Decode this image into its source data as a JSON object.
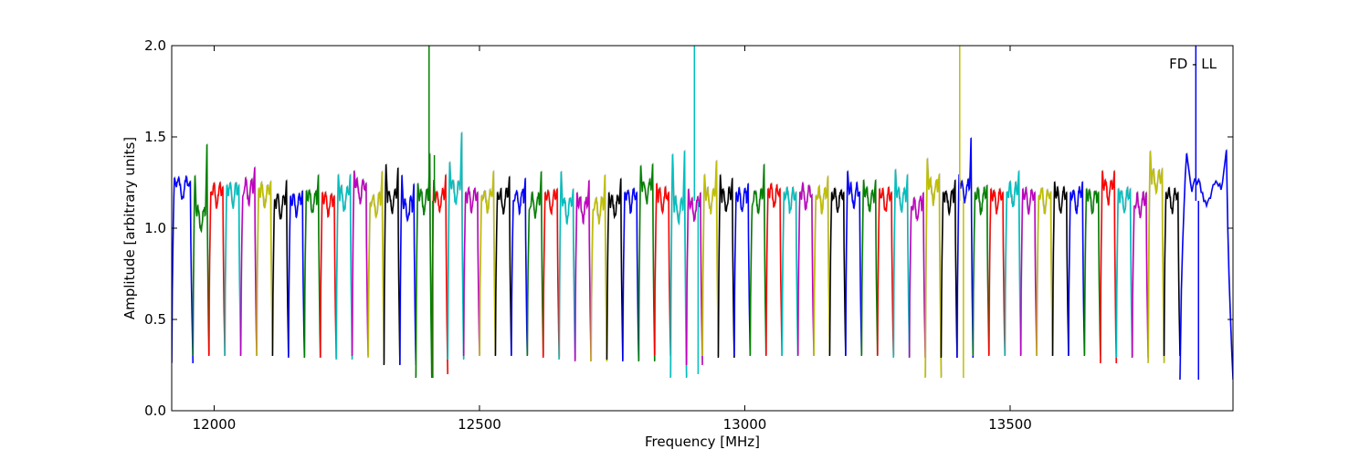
{
  "chart_data": {
    "type": "line",
    "title": "",
    "annotation": "FD - LL",
    "legend": "none",
    "grid": false,
    "xlabel": "Frequency [MHz]",
    "ylabel": "Amplitude [arbitrary units]",
    "xlim": [
      11920,
      13920
    ],
    "ylim": [
      0.0,
      2.0
    ],
    "xticks": [
      12000,
      12500,
      13000,
      13500
    ],
    "xtick_labels": [
      "12000",
      "12500",
      "13000",
      "13500"
    ],
    "yticks": [
      0.0,
      0.5,
      1.0,
      1.5,
      2.0
    ],
    "ytick_labels": [
      "0.0",
      "0.5",
      "1.0",
      "1.5",
      "2.0"
    ],
    "channel_width_mhz": 31.25,
    "colors": [
      "#0000ff",
      "#008000",
      "#ff0000",
      "#00bfbf",
      "#bf00bf",
      "#bfbf00",
      "#000000"
    ],
    "gray_overlay_color": "#aaaaaa",
    "channels": [
      {
        "start": 11920,
        "end": 11960,
        "color": "#0000ff",
        "plateau": 1.22,
        "left_peak": 1.28,
        "right_peak": 1.26,
        "min": 0.26
      },
      {
        "start": 11960,
        "end": 11990,
        "color": "#008000",
        "plateau": 1.05,
        "left_peak": 1.3,
        "right_peak": 1.48,
        "min": 0.3
      },
      {
        "start": 11990,
        "end": 12020,
        "color": "#ff0000",
        "plateau": 1.18,
        "left_peak": 1.2,
        "right_peak": 1.23,
        "min": 0.3
      },
      {
        "start": 12020,
        "end": 12050,
        "color": "#00bfbf",
        "plateau": 1.18,
        "left_peak": 1.24,
        "right_peak": 1.24,
        "min": 0.3
      },
      {
        "start": 12050,
        "end": 12080,
        "color": "#bf00bf",
        "plateau": 1.2,
        "left_peak": 1.17,
        "right_peak": 1.34,
        "min": 0.3
      },
      {
        "start": 12080,
        "end": 12110,
        "color": "#bfbf00",
        "plateau": 1.18,
        "left_peak": 1.22,
        "right_peak": 1.26,
        "min": 0.3
      },
      {
        "start": 12110,
        "end": 12140,
        "color": "#000000",
        "plateau": 1.12,
        "left_peak": 1.16,
        "right_peak": 1.27,
        "min": 0.3
      },
      {
        "start": 12140,
        "end": 12170,
        "color": "#0000ff",
        "plateau": 1.12,
        "left_peak": 1.18,
        "right_peak": 1.21,
        "min": 0.29
      },
      {
        "start": 12170,
        "end": 12200,
        "color": "#008000",
        "plateau": 1.14,
        "left_peak": 1.21,
        "right_peak": 1.3,
        "min": 0.29
      },
      {
        "start": 12200,
        "end": 12230,
        "color": "#ff0000",
        "plateau": 1.13,
        "left_peak": 1.2,
        "right_peak": 1.18,
        "min": 0.29
      },
      {
        "start": 12230,
        "end": 12260,
        "color": "#00bfbf",
        "plateau": 1.16,
        "left_peak": 1.3,
        "right_peak": 1.3,
        "min": 0.28
      },
      {
        "start": 12260,
        "end": 12290,
        "color": "#bf00bf",
        "plateau": 1.2,
        "left_peak": 1.32,
        "right_peak": 1.25,
        "min": 0.3
      },
      {
        "start": 12290,
        "end": 12320,
        "color": "#bfbf00",
        "plateau": 1.12,
        "left_peak": 1.14,
        "right_peak": 1.32,
        "min": 0.29
      },
      {
        "start": 12320,
        "end": 12350,
        "color": "#000000",
        "plateau": 1.15,
        "left_peak": 1.36,
        "right_peak": 1.34,
        "min": 0.25
      },
      {
        "start": 12350,
        "end": 12380,
        "color": "#0000ff",
        "plateau": 1.1,
        "left_peak": 1.3,
        "right_peak": 1.25,
        "min": 0.25
      },
      {
        "start": 12380,
        "end": 12410,
        "color": "#008000",
        "plateau": 1.15,
        "left_peak": 1.25,
        "right_peak": 1.42,
        "min": 0.18
      },
      {
        "start": 12410,
        "end": 12440,
        "color": "#ff0000",
        "plateau": 1.15,
        "left_peak": 1.27,
        "right_peak": 1.3,
        "min": 0.2
      },
      {
        "start": 12440,
        "end": 12470,
        "color": "#00bfbf",
        "plateau": 1.2,
        "left_peak": 1.37,
        "right_peak": 1.54,
        "min": 0.28
      },
      {
        "start": 12470,
        "end": 12500,
        "color": "#bf00bf",
        "plateau": 1.15,
        "left_peak": 1.2,
        "right_peak": 1.2,
        "min": 0.3
      },
      {
        "start": 12500,
        "end": 12530,
        "color": "#bfbf00",
        "plateau": 1.15,
        "left_peak": 1.18,
        "right_peak": 1.32,
        "min": 0.3
      },
      {
        "start": 12530,
        "end": 12560,
        "color": "#000000",
        "plateau": 1.15,
        "left_peak": 1.2,
        "right_peak": 1.29,
        "min": 0.3
      },
      {
        "start": 12560,
        "end": 12590,
        "color": "#0000ff",
        "plateau": 1.15,
        "left_peak": 1.15,
        "right_peak": 1.28,
        "min": 0.3
      },
      {
        "start": 12590,
        "end": 12620,
        "color": "#008000",
        "plateau": 1.12,
        "left_peak": 1.1,
        "right_peak": 1.32,
        "min": 0.3
      },
      {
        "start": 12620,
        "end": 12650,
        "color": "#ff0000",
        "plateau": 1.15,
        "left_peak": 1.2,
        "right_peak": 1.22,
        "min": 0.29
      },
      {
        "start": 12650,
        "end": 12680,
        "color": "#00bfbf",
        "plateau": 1.1,
        "left_peak": 1.32,
        "right_peak": 1.22,
        "min": 0.28
      },
      {
        "start": 12680,
        "end": 12710,
        "color": "#bf00bf",
        "plateau": 1.1,
        "left_peak": 1.2,
        "right_peak": 1.27,
        "min": 0.27
      },
      {
        "start": 12710,
        "end": 12740,
        "color": "#bfbf00",
        "plateau": 1.1,
        "left_peak": 1.1,
        "right_peak": 1.3,
        "min": 0.27
      },
      {
        "start": 12740,
        "end": 12770,
        "color": "#000000",
        "plateau": 1.12,
        "left_peak": 1.2,
        "right_peak": 1.28,
        "min": 0.28
      },
      {
        "start": 12770,
        "end": 12800,
        "color": "#0000ff",
        "plateau": 1.15,
        "left_peak": 1.2,
        "right_peak": 1.2,
        "min": 0.27
      },
      {
        "start": 12800,
        "end": 12830,
        "color": "#008000",
        "plateau": 1.2,
        "left_peak": 1.35,
        "right_peak": 1.36,
        "min": 0.27
      },
      {
        "start": 12830,
        "end": 12860,
        "color": "#ff0000",
        "plateau": 1.15,
        "left_peak": 1.25,
        "right_peak": 1.2,
        "min": 0.3
      },
      {
        "start": 12860,
        "end": 12890,
        "color": "#00bfbf",
        "plateau": 1.1,
        "left_peak": 1.42,
        "right_peak": 1.44,
        "min": 0.18
      },
      {
        "start": 12890,
        "end": 12920,
        "color": "#bf00bf",
        "plateau": 1.1,
        "left_peak": 1.22,
        "right_peak": 1.2,
        "min": 0.25
      },
      {
        "start": 12920,
        "end": 12950,
        "color": "#bfbf00",
        "plateau": 1.15,
        "left_peak": 1.3,
        "right_peak": 1.38,
        "min": 0.3
      },
      {
        "start": 12950,
        "end": 12980,
        "color": "#000000",
        "plateau": 1.15,
        "left_peak": 1.3,
        "right_peak": 1.28,
        "min": 0.29
      },
      {
        "start": 12980,
        "end": 13010,
        "color": "#0000ff",
        "plateau": 1.15,
        "left_peak": 1.2,
        "right_peak": 1.25,
        "min": 0.3
      },
      {
        "start": 13010,
        "end": 13040,
        "color": "#008000",
        "plateau": 1.15,
        "left_peak": 1.12,
        "right_peak": 1.36,
        "min": 0.3
      },
      {
        "start": 13040,
        "end": 13070,
        "color": "#ff0000",
        "plateau": 1.17,
        "left_peak": 1.22,
        "right_peak": 1.22,
        "min": 0.3
      },
      {
        "start": 13070,
        "end": 13100,
        "color": "#00bfbf",
        "plateau": 1.15,
        "left_peak": 1.2,
        "right_peak": 1.2,
        "min": 0.3
      },
      {
        "start": 13100,
        "end": 13130,
        "color": "#bf00bf",
        "plateau": 1.17,
        "left_peak": 1.2,
        "right_peak": 1.18,
        "min": 0.3
      },
      {
        "start": 13130,
        "end": 13160,
        "color": "#bfbf00",
        "plateau": 1.15,
        "left_peak": 1.18,
        "right_peak": 1.29,
        "min": 0.3
      },
      {
        "start": 13160,
        "end": 13190,
        "color": "#000000",
        "plateau": 1.15,
        "left_peak": 1.2,
        "right_peak": 1.2,
        "min": 0.3
      },
      {
        "start": 13190,
        "end": 13220,
        "color": "#0000ff",
        "plateau": 1.18,
        "left_peak": 1.32,
        "right_peak": 1.2,
        "min": 0.3
      },
      {
        "start": 13220,
        "end": 13250,
        "color": "#008000",
        "plateau": 1.15,
        "left_peak": 1.27,
        "right_peak": 1.27,
        "min": 0.3
      },
      {
        "start": 13250,
        "end": 13280,
        "color": "#ff0000",
        "plateau": 1.15,
        "left_peak": 1.22,
        "right_peak": 1.2,
        "min": 0.3
      },
      {
        "start": 13280,
        "end": 13310,
        "color": "#00bfbf",
        "plateau": 1.15,
        "left_peak": 1.33,
        "right_peak": 1.3,
        "min": 0.29
      },
      {
        "start": 13310,
        "end": 13340,
        "color": "#bf00bf",
        "plateau": 1.1,
        "left_peak": 1.12,
        "right_peak": 1.2,
        "min": 0.29
      },
      {
        "start": 13340,
        "end": 13370,
        "color": "#bfbf00",
        "plateau": 1.2,
        "left_peak": 1.39,
        "right_peak": 1.3,
        "min": 0.18
      },
      {
        "start": 13370,
        "end": 13400,
        "color": "#000000",
        "plateau": 1.15,
        "left_peak": 1.2,
        "right_peak": 1.27,
        "min": 0.29
      },
      {
        "start": 13400,
        "end": 13430,
        "color": "#0000ff",
        "plateau": 1.2,
        "left_peak": 1.3,
        "right_peak": 1.51,
        "min": 0.29
      },
      {
        "start": 13430,
        "end": 13460,
        "color": "#008000",
        "plateau": 1.15,
        "left_peak": 1.2,
        "right_peak": 1.24,
        "min": 0.3
      },
      {
        "start": 13460,
        "end": 13490,
        "color": "#ff0000",
        "plateau": 1.15,
        "left_peak": 1.22,
        "right_peak": 1.2,
        "min": 0.3
      },
      {
        "start": 13490,
        "end": 13520,
        "color": "#00bfbf",
        "plateau": 1.18,
        "left_peak": 1.2,
        "right_peak": 1.32,
        "min": 0.3
      },
      {
        "start": 13520,
        "end": 13550,
        "color": "#bf00bf",
        "plateau": 1.15,
        "left_peak": 1.22,
        "right_peak": 1.2,
        "min": 0.3
      },
      {
        "start": 13550,
        "end": 13580,
        "color": "#bfbf00",
        "plateau": 1.15,
        "left_peak": 1.18,
        "right_peak": 1.2,
        "min": 0.3
      },
      {
        "start": 13580,
        "end": 13610,
        "color": "#000000",
        "plateau": 1.15,
        "left_peak": 1.26,
        "right_peak": 1.2,
        "min": 0.3
      },
      {
        "start": 13610,
        "end": 13640,
        "color": "#0000ff",
        "plateau": 1.15,
        "left_peak": 1.2,
        "right_peak": 1.26,
        "min": 0.3
      },
      {
        "start": 13640,
        "end": 13670,
        "color": "#008000",
        "plateau": 1.15,
        "left_peak": 1.22,
        "right_peak": 1.2,
        "min": 0.3
      },
      {
        "start": 13670,
        "end": 13700,
        "color": "#ff0000",
        "plateau": 1.2,
        "left_peak": 1.32,
        "right_peak": 1.32,
        "min": 0.26
      },
      {
        "start": 13700,
        "end": 13730,
        "color": "#00bfbf",
        "plateau": 1.15,
        "left_peak": 1.22,
        "right_peak": 1.22,
        "min": 0.29
      },
      {
        "start": 13730,
        "end": 13760,
        "color": "#bf00bf",
        "plateau": 1.12,
        "left_peak": 1.12,
        "right_peak": 1.2,
        "min": 0.29
      },
      {
        "start": 13760,
        "end": 13790,
        "color": "#bfbf00",
        "plateau": 1.25,
        "left_peak": 1.43,
        "right_peak": 1.33,
        "min": 0.26
      },
      {
        "start": 13790,
        "end": 13820,
        "color": "#000000",
        "plateau": 1.15,
        "left_peak": 1.2,
        "right_peak": 1.2,
        "min": 0.3
      },
      {
        "start": 13820,
        "end": 13920,
        "color": "#0000ff",
        "plateau": 1.2,
        "left_peak": 1.42,
        "right_peak": 1.44,
        "min": 0.17
      }
    ],
    "spikes": [
      {
        "x": 12405,
        "y": 2.0,
        "color": "#008000"
      },
      {
        "x": 12412,
        "y": 0.18,
        "color": "#008000"
      },
      {
        "x": 12415,
        "y": 1.4,
        "color": "#008000"
      },
      {
        "x": 12905,
        "y": 2.0,
        "color": "#00bfbf"
      },
      {
        "x": 12912,
        "y": 0.2,
        "color": "#00bfbf"
      },
      {
        "x": 13405,
        "y": 2.0,
        "color": "#bfbf00"
      },
      {
        "x": 13412,
        "y": 0.18,
        "color": "#bfbf00"
      },
      {
        "x": 13850,
        "y": 2.0,
        "color": "#0000ff"
      },
      {
        "x": 13855,
        "y": 0.17,
        "color": "#0000ff"
      }
    ]
  }
}
